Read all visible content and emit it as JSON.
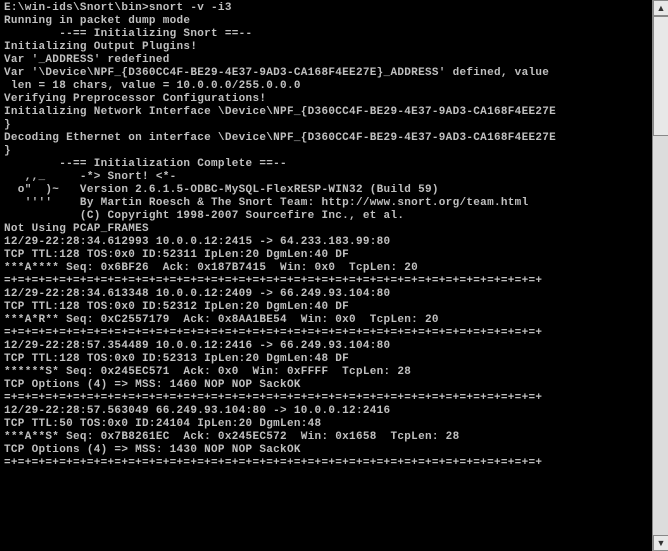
{
  "terminal": {
    "bg_color": "#000000",
    "fg_color": "#c0c0c0",
    "font_family": "Courier New",
    "font_size": 11,
    "lines": [
      "E:\\win-ids\\Snort\\bin>snort -v -i3",
      "Running in packet dump mode",
      "",
      "        --== Initializing Snort ==--",
      "Initializing Output Plugins!",
      "Var '_ADDRESS' redefined",
      "Var '\\Device\\NPF_{D360CC4F-BE29-4E37-9AD3-CA168F4EE27E}_ADDRESS' defined, value",
      " len = 18 chars, value = 10.0.0.0/255.0.0.0",
      "Verifying Preprocessor Configurations!",
      "",
      "Initializing Network Interface \\Device\\NPF_{D360CC4F-BE29-4E37-9AD3-CA168F4EE27E",
      "}",
      "Decoding Ethernet on interface \\Device\\NPF_{D360CC4F-BE29-4E37-9AD3-CA168F4EE27E",
      "}",
      "",
      "        --== Initialization Complete ==--",
      "",
      "   ,,_     -*> Snort! <*-",
      "  o\"  )~   Version 2.6.1.5-ODBC-MySQL-FlexRESP-WIN32 (Build 59)",
      "   ''''    By Martin Roesch & The Snort Team: http://www.snort.org/team.html",
      "           (C) Copyright 1998-2007 Sourcefire Inc., et al.",
      "",
      "Not Using PCAP_FRAMES",
      "12/29-22:28:34.612993 10.0.0.12:2415 -> 64.233.183.99:80",
      "TCP TTL:128 TOS:0x0 ID:52311 IpLen:20 DgmLen:40 DF",
      "***A**** Seq: 0x6BF26  Ack: 0x187B7415  Win: 0x0  TcpLen: 20",
      "=+=+=+=+=+=+=+=+=+=+=+=+=+=+=+=+=+=+=+=+=+=+=+=+=+=+=+=+=+=+=+=+=+=+=+=+=+=+=+",
      "",
      "12/29-22:28:34.613348 10.0.0.12:2409 -> 66.249.93.104:80",
      "TCP TTL:128 TOS:0x0 ID:52312 IpLen:20 DgmLen:40 DF",
      "***A*R** Seq: 0xC2557179  Ack: 0x8AA1BE54  Win: 0x0  TcpLen: 20",
      "=+=+=+=+=+=+=+=+=+=+=+=+=+=+=+=+=+=+=+=+=+=+=+=+=+=+=+=+=+=+=+=+=+=+=+=+=+=+=+",
      "",
      "12/29-22:28:57.354489 10.0.0.12:2416 -> 66.249.93.104:80",
      "TCP TTL:128 TOS:0x0 ID:52313 IpLen:20 DgmLen:48 DF",
      "******S* Seq: 0x245EC571  Ack: 0x0  Win: 0xFFFF  TcpLen: 28",
      "TCP Options (4) => MSS: 1460 NOP NOP SackOK",
      "=+=+=+=+=+=+=+=+=+=+=+=+=+=+=+=+=+=+=+=+=+=+=+=+=+=+=+=+=+=+=+=+=+=+=+=+=+=+=+",
      "",
      "12/29-22:28:57.563049 66.249.93.104:80 -> 10.0.0.12:2416",
      "TCP TTL:50 TOS:0x0 ID:24104 IpLen:20 DgmLen:48",
      "***A**S* Seq: 0x7B8261EC  Ack: 0x245EC572  Win: 0x1658  TcpLen: 28",
      "TCP Options (4) => MSS: 1430 NOP NOP SackOK",
      "=+=+=+=+=+=+=+=+=+=+=+=+=+=+=+=+=+=+=+=+=+=+=+=+=+=+=+=+=+=+=+=+=+=+=+=+=+=+=+"
    ]
  },
  "scrollbar": {
    "bg_color": "#dcdcdc",
    "thumb_color": "#e8e8e8",
    "up_glyph": "▲",
    "down_glyph": "▼"
  }
}
